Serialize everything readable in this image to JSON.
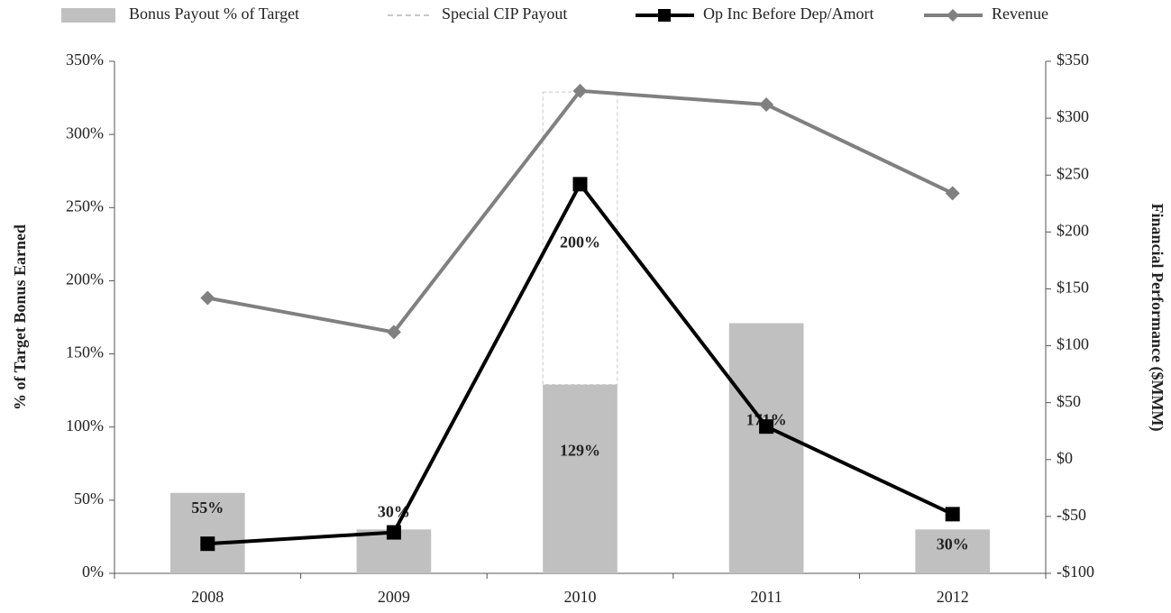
{
  "chart_data": {
    "type": "bar",
    "categories": [
      "2008",
      "2009",
      "2010",
      "2011",
      "2012"
    ],
    "ylabel": "% of Target Bonus Earned",
    "y2label": "Financial Performance ($MMM)",
    "ylim": [
      0,
      350
    ],
    "yticks": [
      {
        "value": 0,
        "label": "0%"
      },
      {
        "value": 50,
        "label": "50%"
      },
      {
        "value": 100,
        "label": "100%"
      },
      {
        "value": 150,
        "label": "150%"
      },
      {
        "value": 200,
        "label": "200%"
      },
      {
        "value": 250,
        "label": "250%"
      },
      {
        "value": 300,
        "label": "300%"
      },
      {
        "value": 350,
        "label": "350%"
      }
    ],
    "y2lim": [
      -100,
      350
    ],
    "y2ticks": [
      {
        "value": -100,
        "label": "-$100"
      },
      {
        "value": -50,
        "label": "-$50"
      },
      {
        "value": 0,
        "label": "$0"
      },
      {
        "value": 50,
        "label": "$50"
      },
      {
        "value": 100,
        "label": "$100"
      },
      {
        "value": 150,
        "label": "$150"
      },
      {
        "value": 200,
        "label": "$200"
      },
      {
        "value": 250,
        "label": "$250"
      },
      {
        "value": 300,
        "label": "$300"
      },
      {
        "value": 350,
        "label": "$350"
      }
    ],
    "legend": "top",
    "series": [
      {
        "name": "Bonus Payout % of Target",
        "type": "bar",
        "color": "#c0c0c0",
        "values": [
          55,
          30,
          129,
          171,
          30
        ],
        "value_labels": [
          "55%",
          "30%",
          "129%",
          "171%",
          "30%"
        ]
      },
      {
        "name": "Special CIP Payout",
        "type": "stacked-dashed",
        "color": "#c8c8c8",
        "values": [
          null,
          null,
          200,
          null,
          null
        ],
        "value_labels": [
          null,
          null,
          "200%",
          null,
          null
        ]
      },
      {
        "name": "Op Inc Before Dep/Amort",
        "type": "line",
        "axis": "y2",
        "marker": "square",
        "color": "#000000",
        "values": [
          -74,
          -64,
          242,
          29,
          -48
        ]
      },
      {
        "name": "Revenue",
        "type": "line",
        "axis": "y2",
        "marker": "diamond",
        "color": "#808080",
        "values": [
          142,
          112,
          324,
          312,
          234
        ]
      }
    ]
  }
}
